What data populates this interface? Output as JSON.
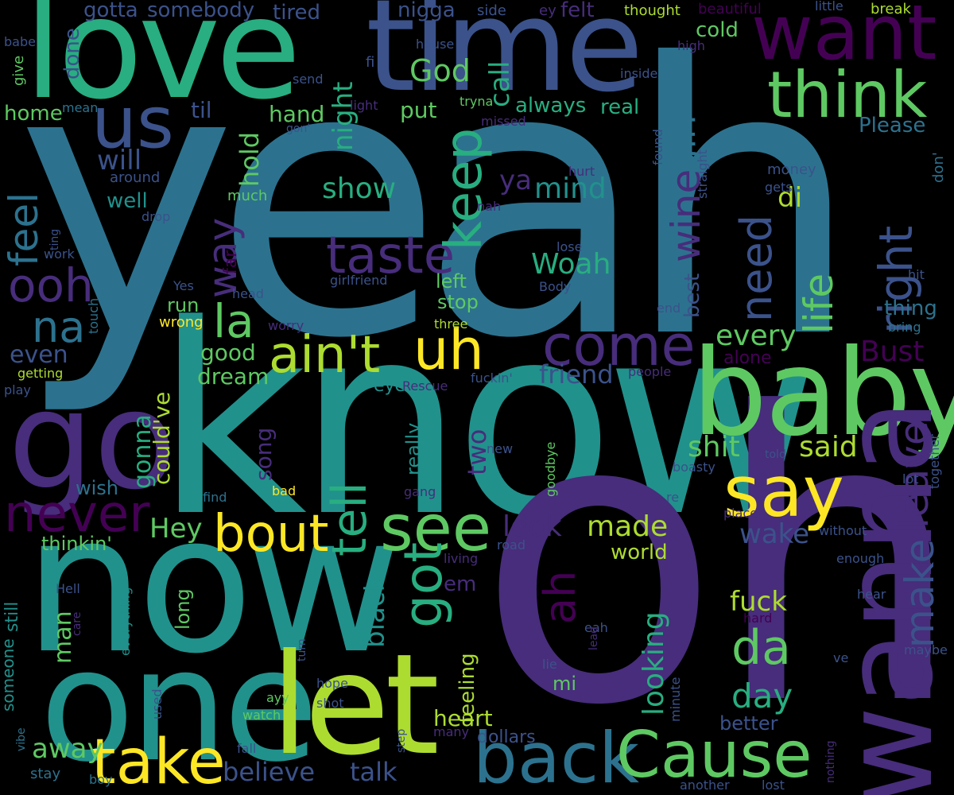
{
  "words": {
    "yeah": "yeah",
    "know": "know",
    "oh": "oh",
    "love": "love",
    "time": "time",
    "now": "now",
    "one": "one",
    "let": "let",
    "go": "go",
    "baby": "baby",
    "wanna": "wanna",
    "want": "want",
    "think": "think",
    "us": "us",
    "say": "say",
    "back": "back",
    "take": "take",
    "Cause": "Cause",
    "see": "see",
    "come": "come",
    "uh": "uh",
    "aint": "ain't",
    "bout": "bout",
    "taste": "taste",
    "keep": "keep",
    "got": "got",
    "tell": "tell",
    "never": "never",
    "ooh": "ooh",
    "na": "na",
    "feel": "feel",
    "la": "la",
    "way": "way",
    "need": "need",
    "right": "right",
    "life": "life",
    "wine": "wine",
    "girl": "girl",
    "make": "make",
    "leave": "leave",
    "da": "da",
    "ah": "ah",
    "day": "day",
    "Woah": "Woah",
    "show": "show",
    "mind": "mind",
    "God": "God",
    "every": "every",
    "Bust": "Bust",
    "shit": "shit",
    "said": "said",
    "made": "made",
    "look": "look",
    "Hey": "Hey",
    "wake": "wake",
    "looking": "looking",
    "fuck": "fuck",
    "black": "black",
    "heart": "heart",
    "believe": "believe",
    "talk": "talk",
    "away": "away",
    "man": "man",
    "friend": "friend",
    "dream": "dream",
    "good": "good",
    "even": "even",
    "hold": "hold",
    "gonna": "gonna",
    "couldve": "could've",
    "song": "song",
    "two": "two",
    "ya": "ya",
    "di": "di",
    "will": "will",
    "well": "well",
    "night": "night",
    "call": "call",
    "always": "always",
    "real": "real",
    "put": "put",
    "hand": "hand",
    "home": "home",
    "til": "til",
    "felt": "felt",
    "cold": "cold",
    "done": "done",
    "gotta": "gotta",
    "somebody": "somebody",
    "tired": "tired",
    "nigga": "nigga",
    "Please": "Please",
    "best": "best",
    "thing": "thing",
    "world": "world",
    "em": "em",
    "feeling": "feeling",
    "better": "better",
    "long": "long",
    "left": "left",
    "stop": "stop",
    "run": "run",
    "wrong": "wrong",
    "mi": "mi",
    "really": "really",
    "thinkin": "thinkin'",
    "wish": "wish",
    "still": "still",
    "someone": "someone",
    "eye": "eye",
    "alone": "alone",
    "dollars": "dollars",
    "side": "side",
    "ey": "ey",
    "beautiful": "beautiful",
    "thought": "thought",
    "little": "little",
    "break": "break",
    "babe": "babe",
    "fi": "fi",
    "house": "house",
    "high": "high",
    "give": "give",
    "send": "send",
    "inside": "inside",
    "mean": "mean",
    "light": "light",
    "tryna": "tryna",
    "missed": "missed",
    "gon": "gon'",
    "found": "found",
    "straight": "straight",
    "dont": "don'",
    "hurt": "hurt",
    "money": "money",
    "gets": "gets",
    "around": "around",
    "drop": "drop",
    "much": "much",
    "far": "far",
    "nah": "nah",
    "lose": "lose",
    "ting": "ting",
    "work": "work",
    "girlfriend": "girlfriend",
    "head": "head",
    "Body": "Body",
    "Yes": "Yes",
    "hit": "hit",
    "worry": "worry",
    "three": "three",
    "end": "end",
    "bring": "bring",
    "touch": "touch",
    "getting": "getting",
    "play": "play",
    "Rescue": "Rescue",
    "fuckin": "fuckin'",
    "people": "people",
    "together": "together",
    "boasty": "boasty",
    "told": "told",
    "new": "new",
    "goodbye": "goodbye",
    "lot": "lot",
    "gang": "gang",
    "find": "find",
    "bad": "bad",
    "re": "re",
    "place": "place",
    "without": "without",
    "road": "road",
    "living": "living",
    "enough": "enough",
    "Hell": "Hell",
    "care": "care",
    "everything": "everything",
    "eah": "eah",
    "lead": "lead",
    "lie": "lie",
    "minute": "minute",
    "hard": "hard",
    "hear": "hear",
    "maybe": "maybe",
    "ve": "ve",
    "hope": "hope",
    "ayy": "ayy",
    "shot": "shot",
    "used": "used",
    "turn": "turn",
    "watch": "watch",
    "vibe": "vibe",
    "stay": "stay",
    "fall": "fall",
    "step": "step",
    "many": "many",
    "boy": "boy",
    "another": "another",
    "lost": "lost",
    "nothing": "nothing"
  },
  "palette": {
    "c0": "#440154",
    "c1": "#472d7b",
    "c2": "#3b528b",
    "c3": "#2c728e",
    "c4": "#21918c",
    "c5": "#28ae80",
    "c6": "#5ec962",
    "c7": "#addc30",
    "c8": "#fde725"
  }
}
